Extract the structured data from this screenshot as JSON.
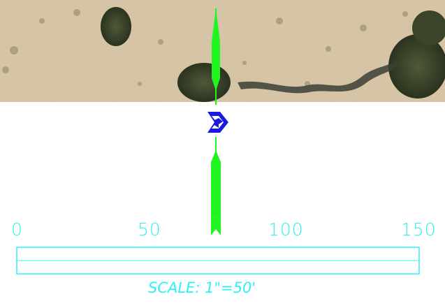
{
  "aerial_view": {
    "description_icons": [
      "tree-cluster",
      "dry-wash-channel",
      "shrub"
    ]
  },
  "north_arrow": {
    "icon": "north-arrow-icon",
    "color": "#1ff51f"
  },
  "marker": {
    "icon": "blue-cube-marker-icon",
    "color": "#1a1adf"
  },
  "scale_bar": {
    "color": "#2ff1f5",
    "ticks": [
      {
        "value": 0,
        "label": "0"
      },
      {
        "value": 50,
        "label": "50"
      },
      {
        "value": 100,
        "label": "100"
      },
      {
        "value": 150,
        "label": "150"
      }
    ],
    "units_per_inch": 50,
    "caption": "SCALE: 1\"=50'"
  },
  "colors": {
    "background": "#ffffff",
    "scale": "#2ff1f5",
    "arrow": "#1ff51f",
    "marker": "#1a1adf",
    "terrain": "#d9c7a6"
  }
}
